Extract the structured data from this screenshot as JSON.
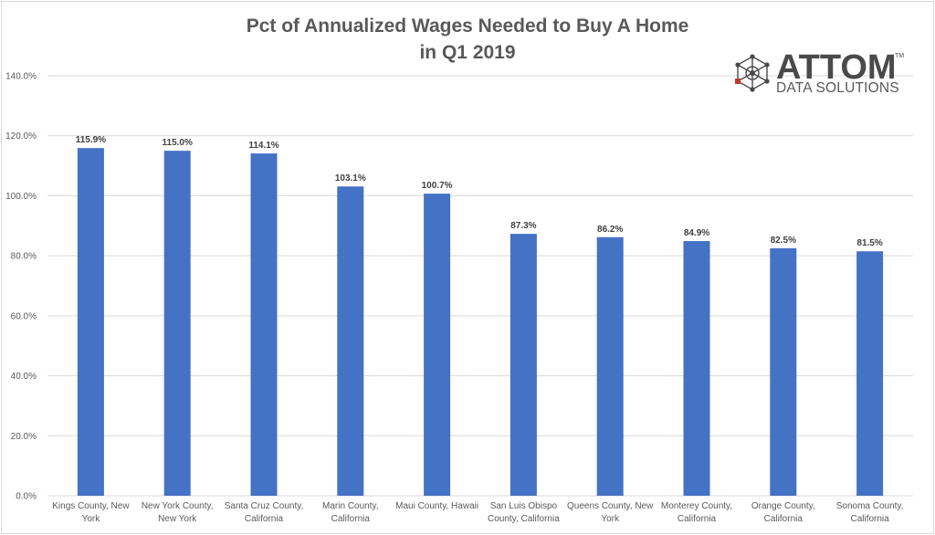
{
  "chart_data": {
    "type": "bar",
    "title_lines": [
      "Pct of Annualized Wages Needed to Buy A Home",
      "in Q1 2019"
    ],
    "categories": [
      [
        "Kings County, New",
        "York"
      ],
      [
        "New York County,",
        "New York"
      ],
      [
        "Santa Cruz County,",
        "California"
      ],
      [
        "Marin County,",
        "California"
      ],
      [
        "Maui County, Hawaii"
      ],
      [
        "San Luis Obispo",
        "County, California"
      ],
      [
        "Queens County, New",
        "York"
      ],
      [
        "Monterey County,",
        "California"
      ],
      [
        "Orange County,",
        "California"
      ],
      [
        "Sonoma County,",
        "California"
      ]
    ],
    "values": [
      115.9,
      115.0,
      114.1,
      103.1,
      100.7,
      87.3,
      86.2,
      84.9,
      82.5,
      81.5
    ],
    "data_labels": [
      "115.9%",
      "115.0%",
      "114.1%",
      "103.1%",
      "100.7%",
      "87.3%",
      "86.2%",
      "84.9%",
      "82.5%",
      "81.5%"
    ],
    "yticks": [
      0,
      20,
      40,
      60,
      80,
      100,
      120,
      140
    ],
    "ytick_labels": [
      "0.0%",
      "20.0%",
      "40.0%",
      "60.0%",
      "80.0%",
      "100.0%",
      "120.0%",
      "140.0%"
    ],
    "ylim": [
      0,
      140
    ],
    "grid": true,
    "legend": "none",
    "colors": {
      "bar": "#4472c4",
      "grid": "#d9d9d9",
      "text": "#595959",
      "label": "#404040"
    }
  },
  "logo": {
    "word": "ATTOM",
    "tm": "TM",
    "subtitle": "DATA SOLUTIONS",
    "colors": {
      "dark": "#4a4a4a",
      "accent": "#c0392b"
    }
  }
}
